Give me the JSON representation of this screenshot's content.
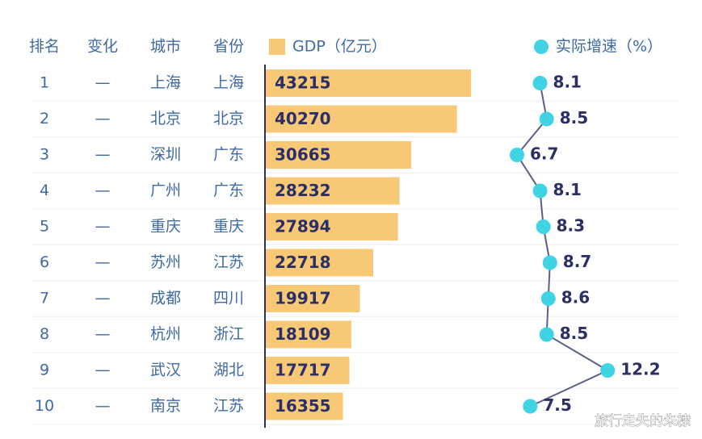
{
  "chart_data": {
    "type": "combo",
    "columns": [
      "排名",
      "变化",
      "城市",
      "省份"
    ],
    "rows": [
      {
        "rank": "1",
        "change": "—",
        "city": "上海",
        "province": "上海"
      },
      {
        "rank": "2",
        "change": "—",
        "city": "北京",
        "province": "北京"
      },
      {
        "rank": "3",
        "change": "—",
        "city": "深圳",
        "province": "广东"
      },
      {
        "rank": "4",
        "change": "—",
        "city": "广州",
        "province": "广东"
      },
      {
        "rank": "5",
        "change": "—",
        "city": "重庆",
        "province": "重庆"
      },
      {
        "rank": "6",
        "change": "—",
        "city": "苏州",
        "province": "江苏"
      },
      {
        "rank": "7",
        "change": "—",
        "city": "成都",
        "province": "四川"
      },
      {
        "rank": "8",
        "change": "—",
        "city": "杭州",
        "province": "浙江"
      },
      {
        "rank": "9",
        "change": "—",
        "city": "武汉",
        "province": "湖北"
      },
      {
        "rank": "10",
        "change": "—",
        "city": "南京",
        "province": "江苏"
      }
    ],
    "series": [
      {
        "name": "GDP（亿元）",
        "color": "#f7c977",
        "values": [
          43215,
          40270,
          30665,
          28232,
          27894,
          22718,
          19917,
          18109,
          17717,
          16355
        ]
      },
      {
        "name": "实际增速（%）",
        "color": "#3fd3e3",
        "values": [
          8.1,
          8.5,
          6.7,
          8.1,
          8.3,
          8.7,
          8.6,
          8.5,
          12.2,
          7.5
        ]
      }
    ],
    "watermark": "旅行走失的朱棣"
  }
}
